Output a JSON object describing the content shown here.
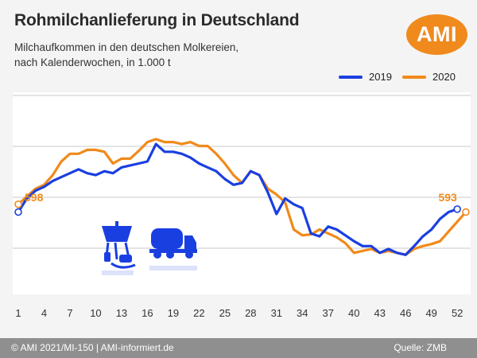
{
  "header": {
    "title": "Rohmilchanlieferung in Deutschland",
    "subtitle_line1": "Milchaufkommen in den deutschen Molkereien,",
    "subtitle_line2": "nach Kalenderwochen, in 1.000 t",
    "logo_text": "AMI"
  },
  "footer": {
    "copyright": "© AMI 2021/MI-150 | AMI-informiert.de",
    "source": "Quelle: ZMB"
  },
  "colors": {
    "series_2019": "#1a3fe0",
    "series_2020": "#f08a1c",
    "grid": "#c9c9c9",
    "icons": "#1a3fe0"
  },
  "icons": [
    "milking-machine-icon",
    "milk-tanker-truck-icon"
  ],
  "chart_data": {
    "type": "line",
    "x_ticks": [
      1,
      4,
      7,
      10,
      13,
      16,
      19,
      22,
      25,
      28,
      31,
      34,
      37,
      40,
      43,
      46,
      49,
      52
    ],
    "xlim": [
      1,
      53
    ],
    "ylim": [
      520,
      710
    ],
    "grid": "horizontal",
    "legend_position": "top-right",
    "annotations": [
      {
        "text": "598",
        "series": "2020",
        "week": 1
      },
      {
        "text": "593",
        "series": "2019",
        "week": 52
      }
    ],
    "series": [
      {
        "name": "2019",
        "x": [
          1,
          2,
          3,
          4,
          5,
          6,
          7,
          8,
          9,
          10,
          11,
          12,
          13,
          14,
          15,
          16,
          17,
          18,
          19,
          20,
          21,
          22,
          23,
          24,
          25,
          26,
          27,
          28,
          29,
          30,
          31,
          32,
          33,
          34,
          35,
          36,
          37,
          38,
          39,
          40,
          41,
          42,
          43,
          44,
          45,
          46,
          47,
          48,
          49,
          50,
          51,
          52
        ],
        "values": [
          590,
          604,
          612,
          616,
          622,
          626,
          630,
          634,
          630,
          628,
          632,
          630,
          636,
          638,
          640,
          642,
          660,
          652,
          652,
          650,
          646,
          640,
          636,
          632,
          624,
          618,
          620,
          632,
          628,
          610,
          588,
          604,
          598,
          594,
          568,
          565,
          575,
          572,
          566,
          560,
          555,
          555,
          548,
          552,
          548,
          546,
          555,
          565,
          572,
          583,
          590,
          593
        ]
      },
      {
        "name": "2020",
        "x": [
          1,
          2,
          3,
          4,
          5,
          6,
          7,
          8,
          9,
          10,
          11,
          12,
          13,
          14,
          15,
          16,
          17,
          18,
          19,
          20,
          21,
          22,
          23,
          24,
          25,
          26,
          27,
          28,
          29,
          30,
          31,
          32,
          33,
          34,
          35,
          36,
          37,
          38,
          39,
          40,
          41,
          42,
          43,
          44,
          45,
          46,
          47,
          48,
          49,
          50,
          51,
          52,
          53
        ],
        "values": [
          598,
          606,
          614,
          618,
          628,
          642,
          650,
          650,
          654,
          654,
          652,
          640,
          645,
          645,
          653,
          662,
          665,
          662,
          662,
          660,
          662,
          658,
          658,
          650,
          640,
          628,
          620,
          632,
          628,
          614,
          608,
          600,
          572,
          566,
          567,
          572,
          568,
          564,
          558,
          548,
          550,
          552,
          548,
          550,
          548,
          546,
          552,
          555,
          557,
          560,
          570,
          580,
          590
        ]
      }
    ]
  }
}
